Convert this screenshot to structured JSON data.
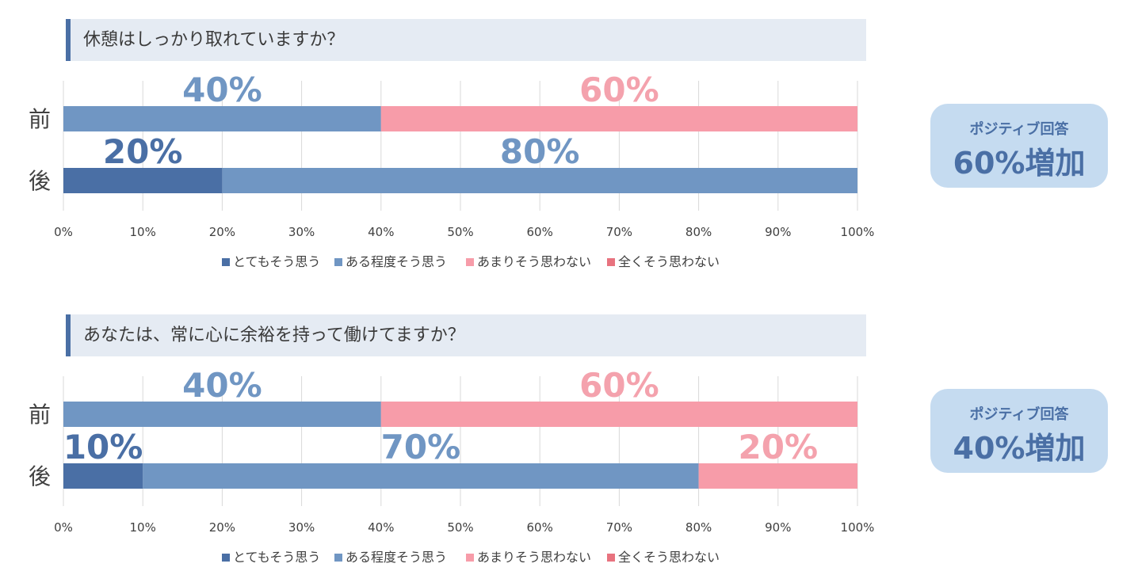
{
  "colors": {
    "series": [
      "#4a6fa5",
      "#7096c3",
      "#f79ca9",
      "#e8737f"
    ],
    "pink_label": "#f4a2ad",
    "grid": "#d9d9d9",
    "question_bg": "#e5ebf3",
    "badge_bg": "#c5dbf0",
    "accent": "#4a6fa5"
  },
  "legend": [
    "とてもそう思う",
    "ある程度そう思う",
    "あまりそう思わない",
    "全くそう思わない"
  ],
  "chart_data": [
    {
      "type": "bar",
      "orientation": "horizontal",
      "stacked": true,
      "title": "休憩はしっかり取れていますか？",
      "categories": [
        "前",
        "後"
      ],
      "series": [
        {
          "name": "とてもそう思う",
          "values": [
            0,
            20
          ]
        },
        {
          "name": "ある程度そう思う",
          "values": [
            40,
            80
          ]
        },
        {
          "name": "あまりそう思わない",
          "values": [
            60,
            0
          ]
        },
        {
          "name": "全くそう思わない",
          "values": [
            0,
            0
          ]
        }
      ],
      "data_labels": [
        [
          "",
          "40%",
          "60%",
          ""
        ],
        [
          "20%",
          "80%",
          "",
          ""
        ]
      ],
      "x_ticks": [
        "0%",
        "10%",
        "20%",
        "30%",
        "40%",
        "50%",
        "60%",
        "70%",
        "80%",
        "90%",
        "100%"
      ],
      "xlim": [
        0,
        100
      ],
      "grid": true,
      "legend_position": "bottom",
      "badge": {
        "line1": "ポジティブ回答",
        "line2": "60%増加"
      }
    },
    {
      "type": "bar",
      "orientation": "horizontal",
      "stacked": true,
      "title": "あなたは、常に心に余裕を持って働けてますか？",
      "categories": [
        "前",
        "後"
      ],
      "series": [
        {
          "name": "とてもそう思う",
          "values": [
            0,
            10
          ]
        },
        {
          "name": "ある程度そう思う",
          "values": [
            40,
            70
          ]
        },
        {
          "name": "あまりそう思わない",
          "values": [
            60,
            20
          ]
        },
        {
          "name": "全くそう思わない",
          "values": [
            0,
            0
          ]
        }
      ],
      "data_labels": [
        [
          "",
          "40%",
          "60%",
          ""
        ],
        [
          "10%",
          "70%",
          "20%",
          ""
        ]
      ],
      "x_ticks": [
        "0%",
        "10%",
        "20%",
        "30%",
        "40%",
        "50%",
        "60%",
        "70%",
        "80%",
        "90%",
        "100%"
      ],
      "xlim": [
        0,
        100
      ],
      "grid": true,
      "legend_position": "bottom",
      "badge": {
        "line1": "ポジティブ回答",
        "line2": "40%増加"
      }
    }
  ]
}
